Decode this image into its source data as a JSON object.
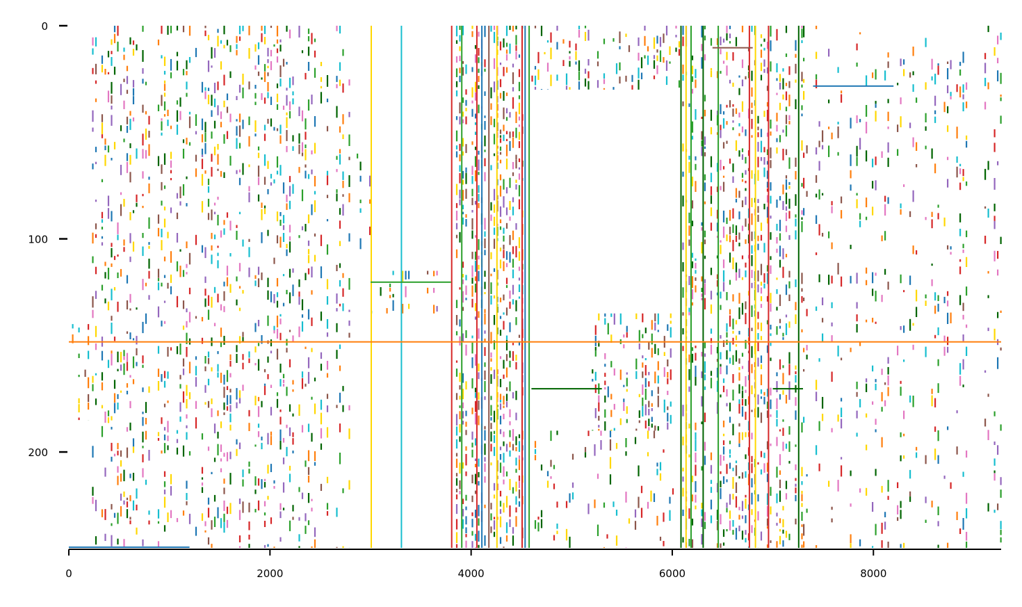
{
  "chart_data": {
    "type": "heatmap",
    "title": "",
    "xlabel": "",
    "ylabel": "",
    "x_range": [
      0,
      9270
    ],
    "y_range": [
      0,
      245
    ],
    "y_inverted": true,
    "x_ticks": [
      0,
      2000,
      4000,
      6000,
      8000
    ],
    "y_ticks": [
      0,
      100,
      200
    ],
    "grid": false,
    "legend": "none",
    "background_color": "#ffffff",
    "palette": [
      "#d62728",
      "#1f77b4",
      "#2ca02c",
      "#ffd700",
      "#17becf",
      "#ff7f0e",
      "#8c564b",
      "#9467bd",
      "#006400",
      "#e377c2"
    ],
    "full_columns": [
      {
        "x": 3000,
        "color": "#ffd700"
      },
      {
        "x": 3300,
        "color": "#17becf"
      },
      {
        "x": 3800,
        "color": "#d62728"
      },
      {
        "x": 3900,
        "color": "#2ca02c"
      },
      {
        "x": 4050,
        "color": "#d62728"
      },
      {
        "x": 4100,
        "color": "#1f77b4"
      },
      {
        "x": 4170,
        "color": "#8c564b"
      },
      {
        "x": 4250,
        "color": "#ffd700"
      },
      {
        "x": 4500,
        "color": "#d62728"
      },
      {
        "x": 4530,
        "color": "#1f77b4"
      },
      {
        "x": 4570,
        "color": "#2ca02c"
      },
      {
        "x": 6080,
        "color": "#006400"
      },
      {
        "x": 6130,
        "color": "#ffd700"
      },
      {
        "x": 6180,
        "color": "#2ca02c"
      },
      {
        "x": 6300,
        "color": "#006400"
      },
      {
        "x": 6450,
        "color": "#2ca02c"
      },
      {
        "x": 6760,
        "color": "#d62728"
      },
      {
        "x": 6820,
        "color": "#ffd700"
      },
      {
        "x": 6950,
        "color": "#d62728"
      },
      {
        "x": 7250,
        "color": "#006400"
      }
    ],
    "blocks": [
      {
        "x0": 200,
        "x1": 2800,
        "y0": 0,
        "y1": 245,
        "density": 0.32
      },
      {
        "x0": 3850,
        "x1": 4600,
        "y0": 0,
        "y1": 245,
        "density": 0.55
      },
      {
        "x0": 4600,
        "x1": 6100,
        "y0": 0,
        "y1": 30,
        "density": 0.35
      },
      {
        "x0": 5200,
        "x1": 6000,
        "y0": 135,
        "y1": 190,
        "density": 0.5
      },
      {
        "x0": 4600,
        "x1": 6000,
        "y0": 190,
        "y1": 245,
        "density": 0.2
      },
      {
        "x0": 6100,
        "x1": 7300,
        "y0": 0,
        "y1": 245,
        "density": 0.45
      },
      {
        "x0": 7300,
        "x1": 9270,
        "y0": 0,
        "y1": 245,
        "density": 0.22
      },
      {
        "x0": 0,
        "x1": 200,
        "y0": 140,
        "y1": 185,
        "density": 0.4
      },
      {
        "x0": 2800,
        "x1": 3000,
        "y0": 60,
        "y1": 110,
        "density": 0.3
      },
      {
        "x0": 3000,
        "x1": 3800,
        "y0": 115,
        "y1": 135,
        "density": 0.35
      }
    ],
    "row_bands": [
      {
        "y": 120,
        "x0": 3000,
        "x1": 3800,
        "color": "#2ca02c"
      },
      {
        "y": 170,
        "x0": 4600,
        "x1": 5300,
        "color": "#006400"
      },
      {
        "y": 170,
        "x0": 7000,
        "x1": 7300,
        "color": "#006400"
      },
      {
        "y": 148,
        "x0": 0,
        "x1": 9270,
        "color": "#ff7f0e"
      },
      {
        "y": 10,
        "x0": 6400,
        "x1": 6800,
        "color": "#8c564b"
      },
      {
        "y": 28,
        "x0": 7400,
        "x1": 8200,
        "color": "#1f77b4"
      },
      {
        "y": 248,
        "x0": 0,
        "x1": 1200,
        "color": "#1f77b4"
      }
    ]
  }
}
